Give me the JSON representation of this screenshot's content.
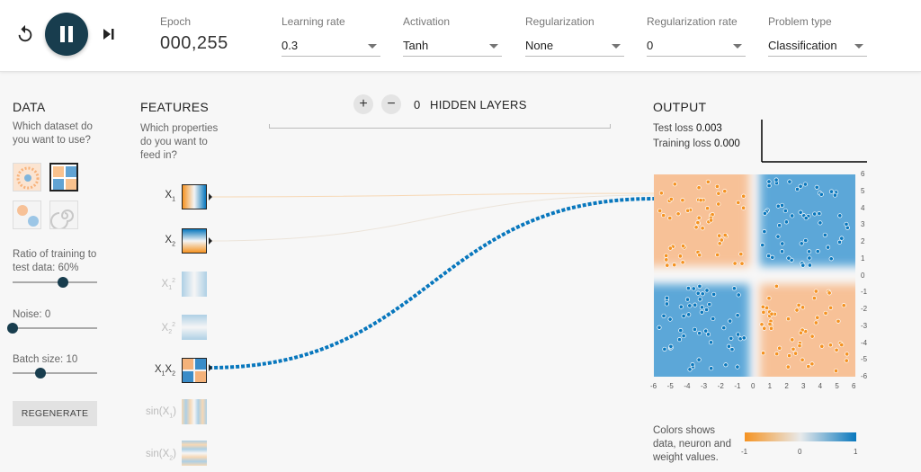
{
  "controls": {
    "epoch_label": "Epoch",
    "epoch_value": "000,255",
    "learning_rate": {
      "label": "Learning rate",
      "value": "0.3"
    },
    "activation": {
      "label": "Activation",
      "value": "Tanh"
    },
    "regularization": {
      "label": "Regularization",
      "value": "None"
    },
    "regularization_rate": {
      "label": "Regularization rate",
      "value": "0"
    },
    "problem_type": {
      "label": "Problem type",
      "value": "Classification"
    }
  },
  "data_panel": {
    "title": "DATA",
    "subtitle": "Which dataset do you want to use?",
    "ratio_label": "Ratio of training to test data:",
    "ratio_value": "60%",
    "ratio_fraction": 0.6,
    "noise_label": "Noise:",
    "noise_value": "0",
    "noise_fraction": 0,
    "batch_label": "Batch size:",
    "batch_value": "10",
    "batch_fraction": 0.33,
    "regenerate": "REGENERATE",
    "datasets": [
      "circle",
      "xor",
      "gaussian",
      "spiral"
    ],
    "selected_dataset": "xor"
  },
  "features_panel": {
    "title": "FEATURES",
    "subtitle": "Which properties do you want to feed in?",
    "features": [
      {
        "base": "X",
        "sub": "1",
        "active": true
      },
      {
        "base": "X",
        "sub": "2",
        "active": true
      },
      {
        "base": "X",
        "sub": "1",
        "sup": "2",
        "active": false
      },
      {
        "base": "X",
        "sub": "2",
        "sup": "2",
        "active": false
      },
      {
        "base": "X₁X",
        "sub": "2",
        "active": true
      },
      {
        "base": "sin(X",
        "sub": "1",
        "tail": ")",
        "active": false
      },
      {
        "base": "sin(X",
        "sub": "2",
        "tail": ")",
        "active": false
      }
    ]
  },
  "network": {
    "hidden_layers_count": "0",
    "hidden_layers_label": "HIDDEN LAYERS",
    "add_icon": "+",
    "remove_icon": "−"
  },
  "output_panel": {
    "title": "OUTPUT",
    "test_loss_label": "Test loss",
    "test_loss_value": "0.003",
    "training_loss_label": "Training loss",
    "training_loss_value": "0.000",
    "x_ticks": [
      "-6",
      "-5",
      "-4",
      "-3",
      "-2",
      "-1",
      "0",
      "1",
      "2",
      "3",
      "4",
      "5",
      "6"
    ],
    "y_ticks": [
      "6",
      "5",
      "4",
      "3",
      "2",
      "1",
      "0",
      "-1",
      "-2",
      "-3",
      "-4",
      "-5",
      "-6"
    ],
    "legend_text": "Colors shows data, neuron and weight values.",
    "legend_min": "-1",
    "legend_mid": "0",
    "legend_max": "1"
  },
  "colors": {
    "orange": "#f59322",
    "orange_light": "#f7c197",
    "blue": "#0877bd",
    "blue_light": "#5ba7d8",
    "dark": "#183d4e"
  },
  "icons": {
    "reset": "reset-icon",
    "play_pause": "pause-icon",
    "step": "step-icon"
  }
}
